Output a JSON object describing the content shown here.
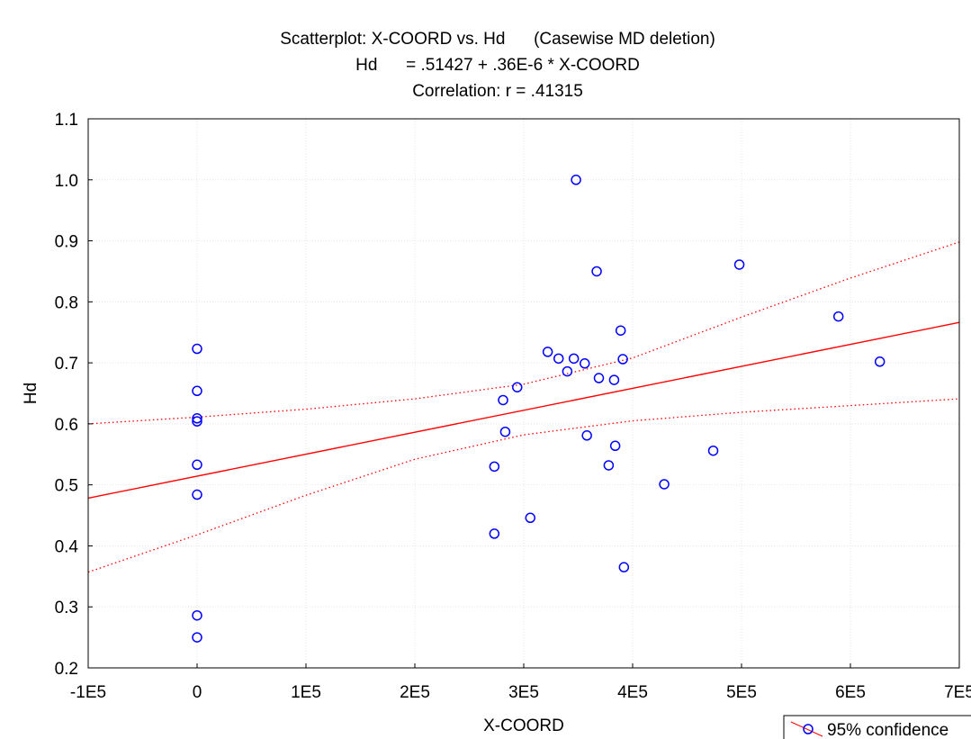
{
  "chart_data": {
    "type": "scatter",
    "title_lines": [
      "Scatterplot: X-COORD vs. Hd      (Casewise MD deletion)",
      "Hd      = .51427 + .36E-6 * X-COORD",
      "Correlation: r = .41315"
    ],
    "xlabel": "X-COORD",
    "ylabel": "Hd",
    "xlim": [
      -100000,
      700000
    ],
    "ylim": [
      0.2,
      1.1
    ],
    "x_ticks": [
      -100000,
      0,
      100000,
      200000,
      300000,
      400000,
      500000,
      600000,
      700000
    ],
    "x_tick_labels": [
      "-1E5",
      "0",
      "1E5",
      "2E5",
      "3E5",
      "4E5",
      "5E5",
      "6E5",
      "7E5"
    ],
    "y_ticks": [
      0.2,
      0.3,
      0.4,
      0.5,
      0.6,
      0.7,
      0.8,
      0.9,
      1.0,
      1.1
    ],
    "y_tick_labels": [
      "0.2",
      "0.3",
      "0.4",
      "0.5",
      "0.6",
      "0.7",
      "0.8",
      "0.9",
      "1.0",
      "1.1"
    ],
    "grid": true,
    "points": [
      [
        0,
        0.723
      ],
      [
        0,
        0.654
      ],
      [
        0,
        0.609
      ],
      [
        0,
        0.604
      ],
      [
        0,
        0.533
      ],
      [
        0,
        0.484
      ],
      [
        0,
        0.286
      ],
      [
        0,
        0.25
      ],
      [
        273000,
        0.53
      ],
      [
        273000,
        0.42
      ],
      [
        281000,
        0.639
      ],
      [
        283000,
        0.587
      ],
      [
        294000,
        0.66
      ],
      [
        306000,
        0.446
      ],
      [
        322000,
        0.718
      ],
      [
        332000,
        0.707
      ],
      [
        340000,
        0.686
      ],
      [
        346000,
        0.707
      ],
      [
        348000,
        1.0
      ],
      [
        356000,
        0.699
      ],
      [
        358000,
        0.581
      ],
      [
        367000,
        0.85
      ],
      [
        369000,
        0.675
      ],
      [
        378000,
        0.532
      ],
      [
        383000,
        0.672
      ],
      [
        384000,
        0.564
      ],
      [
        389000,
        0.753
      ],
      [
        391000,
        0.706
      ],
      [
        392000,
        0.365
      ],
      [
        429000,
        0.501
      ],
      [
        474000,
        0.556
      ],
      [
        498000,
        0.861
      ],
      [
        589000,
        0.776
      ],
      [
        627000,
        0.702
      ]
    ],
    "regression": {
      "intercept": 0.51427,
      "slope": 3.6e-07
    },
    "confidence_band": {
      "upper": [
        [
          -100000,
          0.6
        ],
        [
          0,
          0.611
        ],
        [
          100000,
          0.624
        ],
        [
          200000,
          0.641
        ],
        [
          300000,
          0.665
        ],
        [
          400000,
          0.708
        ],
        [
          500000,
          0.775
        ],
        [
          600000,
          0.839
        ],
        [
          700000,
          0.898
        ]
      ],
      "lower": [
        [
          -100000,
          0.357
        ],
        [
          0,
          0.418
        ],
        [
          100000,
          0.483
        ],
        [
          200000,
          0.542
        ],
        [
          300000,
          0.582
        ],
        [
          400000,
          0.605
        ],
        [
          500000,
          0.619
        ],
        [
          600000,
          0.63
        ],
        [
          700000,
          0.641
        ]
      ]
    },
    "legend": {
      "label": "95% confidence",
      "position": "bottom-right"
    },
    "colors": {
      "points": "#0000ff",
      "line": "#ff0000"
    }
  }
}
